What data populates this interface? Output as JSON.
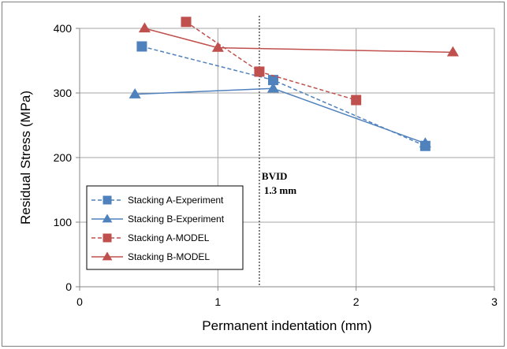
{
  "chart_data": {
    "type": "line",
    "xlabel": "Permanent indentation (mm)",
    "ylabel": "Residual Stress (MPa)",
    "xlim": [
      0,
      3
    ],
    "ylim": [
      0,
      400
    ],
    "xticks": [
      "0",
      "1",
      "2",
      "3"
    ],
    "yticks": [
      "0",
      "100",
      "200",
      "300",
      "400"
    ],
    "grid": true,
    "legend_position": "bottom-left",
    "series": [
      {
        "name": "Stacking A-Experiment",
        "color": "#4f81bd",
        "dash": "dashed",
        "marker": "square",
        "x": [
          0.45,
          1.4,
          2.5
        ],
        "y": [
          372,
          320,
          218
        ]
      },
      {
        "name": "Stacking B-Experiment",
        "color": "#4f81bd",
        "dash": "solid",
        "marker": "triangle",
        "x": [
          0.4,
          1.4,
          2.5
        ],
        "y": [
          298,
          307,
          222
        ]
      },
      {
        "name": "Stacking A-MODEL",
        "color": "#c0504d",
        "dash": "dashed",
        "marker": "square",
        "x": [
          0.77,
          1.3,
          2.0
        ],
        "y": [
          410,
          333,
          289
        ]
      },
      {
        "name": "Stacking B-MODEL",
        "color": "#c0504d",
        "dash": "solid",
        "marker": "triangle",
        "x": [
          0.47,
          1.0,
          2.7
        ],
        "y": [
          400,
          370,
          363
        ]
      }
    ],
    "annotations": [
      {
        "text_line1": "BVID",
        "text_line2": "1.3 mm",
        "x": 1.3
      }
    ]
  }
}
